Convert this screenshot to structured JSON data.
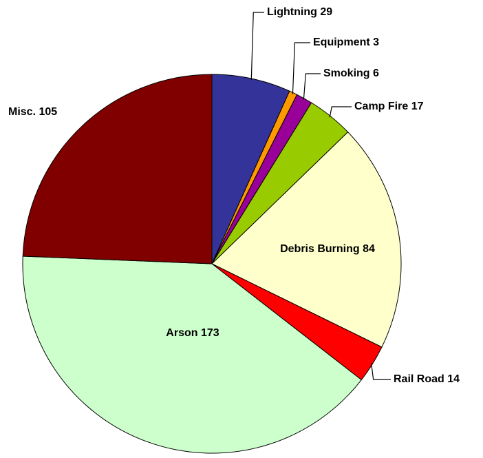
{
  "chart_data": {
    "type": "pie",
    "categories": [
      "Lightning",
      "Equipment",
      "Smoking",
      "Camp Fire",
      "Debris Burning",
      "Rail Road",
      "Arson",
      "Misc."
    ],
    "values": [
      29,
      3,
      6,
      17,
      84,
      14,
      173,
      105
    ],
    "colors": [
      "#333399",
      "#ff9900",
      "#990099",
      "#99cc00",
      "#ffffcc",
      "#ff0000",
      "#ccffcc",
      "#800000"
    ]
  }
}
